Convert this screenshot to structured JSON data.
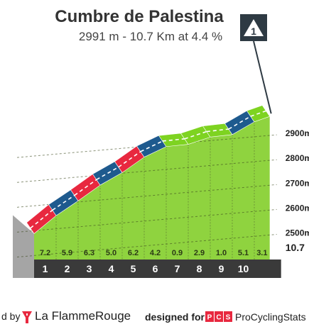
{
  "title": "Cumbre de Palestina",
  "subtitle": "2991 m - 10.7 Km at 4.4 %",
  "category_badge": {
    "icon": "mountain-category-1-icon",
    "label": "1"
  },
  "chart_data": {
    "type": "area",
    "title": "Cumbre de Palestina",
    "subtitle": "2991 m - 10.7 Km at 4.4 %",
    "x_unit": "km",
    "total_distance_label": "10.7",
    "km_labels": [
      "1",
      "2",
      "3",
      "4",
      "5",
      "6",
      "7",
      "8",
      "9",
      "10"
    ],
    "segments": [
      {
        "km": 1,
        "gradient": 7.2,
        "gradient_label": "7.2",
        "color": "#e8283f"
      },
      {
        "km": 2,
        "gradient": 5.9,
        "gradient_label": "5.9",
        "color": "#1e5a8e"
      },
      {
        "km": 3,
        "gradient": 6.3,
        "gradient_label": "6.3",
        "color": "#e8283f"
      },
      {
        "km": 4,
        "gradient": 5.0,
        "gradient_label": "5.0",
        "color": "#1e5a8e"
      },
      {
        "km": 5,
        "gradient": 6.2,
        "gradient_label": "6.2",
        "color": "#e8283f"
      },
      {
        "km": 6,
        "gradient": 4.2,
        "gradient_label": "4.2",
        "color": "#1e5a8e"
      },
      {
        "km": 7,
        "gradient": 0.9,
        "gradient_label": "0.9",
        "color": "#7ed321"
      },
      {
        "km": 8,
        "gradient": 2.9,
        "gradient_label": "2.9",
        "color": "#7ed321"
      },
      {
        "km": 9,
        "gradient": 1.0,
        "gradient_label": "1.0",
        "color": "#7ed321"
      },
      {
        "km": 10,
        "gradient": 5.1,
        "gradient_label": "5.1",
        "color": "#1e5a8e"
      },
      {
        "km": 10.7,
        "gradient": 3.1,
        "gradient_label": "3.1",
        "color": "#7ed321"
      }
    ],
    "elevation_ticks": [
      {
        "value": 2500,
        "label": "2500m"
      },
      {
        "value": 2600,
        "label": "2600m"
      },
      {
        "value": 2700,
        "label": "2700m"
      },
      {
        "value": 2800,
        "label": "2800m"
      },
      {
        "value": 2900,
        "label": "2900m"
      }
    ],
    "summit_elevation": 2991,
    "ylim": [
      2520,
      2991
    ]
  },
  "footer": {
    "by": "d by",
    "lfr": "La FlammeRouge",
    "designed_for": "designed for",
    "pcs_logo": "PCS",
    "pcs": "ProCyclingStats"
  },
  "colors": {
    "surface": "#8fd33f",
    "dark_base": "#3a3a3a",
    "gray_side": "#a5a5a5",
    "badge": "#2e3a43",
    "lfr_red": "#e8283f"
  }
}
